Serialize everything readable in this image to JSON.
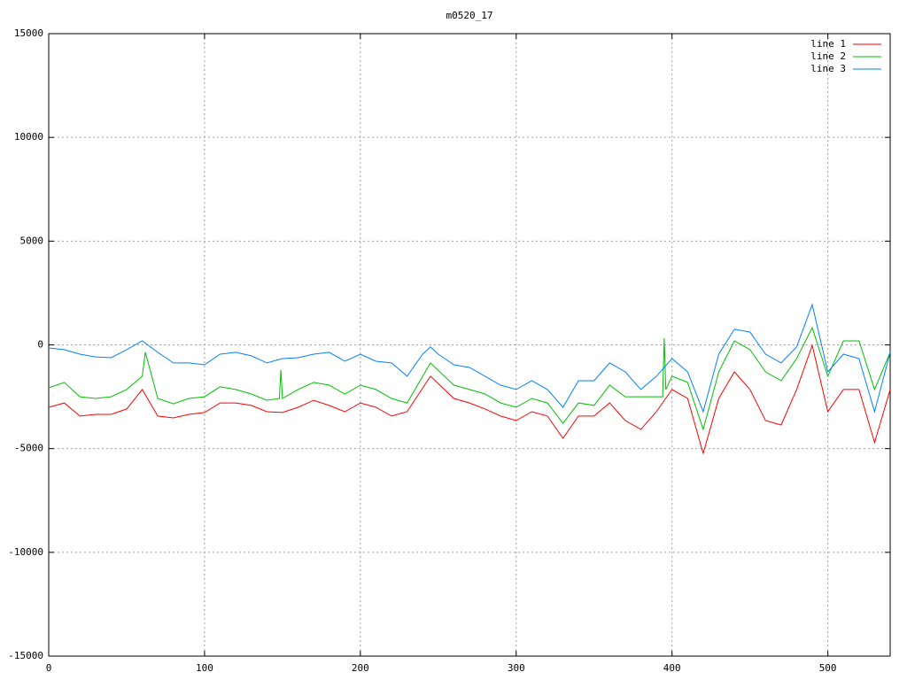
{
  "chart_data": {
    "type": "line",
    "title": "m0520_17",
    "xlim": [
      0,
      540
    ],
    "ylim": [
      -15000,
      15000
    ],
    "xticks": [
      0,
      100,
      200,
      300,
      400,
      500
    ],
    "yticks": [
      -15000,
      -10000,
      -5000,
      0,
      5000,
      10000,
      15000
    ],
    "grid": true,
    "legend": "top-right",
    "series": [
      {
        "name": "line 1",
        "color": "#ff0000",
        "x": [
          0,
          10,
          20,
          30,
          40,
          50,
          60,
          70,
          80,
          90,
          100,
          110,
          120,
          130,
          140,
          150,
          160,
          170,
          180,
          190,
          200,
          210,
          220,
          230,
          245,
          260,
          270,
          280,
          290,
          300,
          310,
          320,
          330,
          340,
          350,
          360,
          370,
          380,
          390,
          400,
          410,
          420,
          430,
          440,
          450,
          460,
          470,
          480,
          490,
          500,
          510,
          520,
          530,
          540
        ],
        "values": [
          -3010,
          -2800,
          -3430,
          -3350,
          -3350,
          -3090,
          -2150,
          -3430,
          -3520,
          -3350,
          -3260,
          -2800,
          -2800,
          -2920,
          -3220,
          -3260,
          -3010,
          -2670,
          -2920,
          -3220,
          -2800,
          -3010,
          -3430,
          -3220,
          -1510,
          -2580,
          -2800,
          -3090,
          -3430,
          -3650,
          -3220,
          -3430,
          -4500,
          -3430,
          -3430,
          -2800,
          -3650,
          -4070,
          -3220,
          -2150,
          -2580,
          -5230,
          -2580,
          -1300,
          -2150,
          -3650,
          -3860,
          -2150,
          -20,
          -3220,
          -2150,
          -2150,
          -4710,
          -2150
        ]
      },
      {
        "name": "line 2",
        "color": "#00c000",
        "x": [
          0,
          10,
          20,
          30,
          40,
          50,
          60,
          62,
          70,
          80,
          90,
          100,
          110,
          120,
          130,
          140,
          148,
          149,
          150,
          160,
          170,
          180,
          190,
          200,
          210,
          220,
          230,
          245,
          260,
          270,
          280,
          290,
          300,
          310,
          320,
          330,
          340,
          350,
          360,
          370,
          380,
          394,
          395,
          396,
          400,
          410,
          420,
          430,
          440,
          450,
          460,
          470,
          480,
          490,
          500,
          510,
          520,
          530,
          540
        ],
        "values": [
          -2070,
          -1810,
          -2500,
          -2580,
          -2500,
          -2150,
          -1510,
          -360,
          -2580,
          -2840,
          -2580,
          -2500,
          -2020,
          -2150,
          -2370,
          -2670,
          -2580,
          -1210,
          -2580,
          -2150,
          -1810,
          -1940,
          -2370,
          -1940,
          -2150,
          -2580,
          -2800,
          -870,
          -1940,
          -2150,
          -2370,
          -2800,
          -3010,
          -2580,
          -2800,
          -3780,
          -2800,
          -2920,
          -1940,
          -2500,
          -2500,
          -2500,
          320,
          -2150,
          -1510,
          -1810,
          -4070,
          -1300,
          190,
          -230,
          -1300,
          -1730,
          -660,
          830,
          -1510,
          190,
          190,
          -2150,
          -360
        ]
      },
      {
        "name": "line 3",
        "color": "#0080ff",
        "x": [
          0,
          10,
          20,
          30,
          40,
          50,
          60,
          70,
          80,
          90,
          100,
          110,
          120,
          130,
          140,
          150,
          160,
          170,
          180,
          190,
          200,
          210,
          220,
          230,
          240,
          245,
          250,
          260,
          270,
          280,
          290,
          300,
          310,
          320,
          330,
          340,
          350,
          360,
          370,
          380,
          390,
          400,
          410,
          420,
          430,
          440,
          450,
          460,
          470,
          480,
          490,
          500,
          510,
          520,
          530,
          540
        ],
        "values": [
          -150,
          -230,
          -450,
          -580,
          -620,
          -230,
          190,
          -360,
          -870,
          -870,
          -960,
          -450,
          -360,
          -530,
          -870,
          -660,
          -620,
          -450,
          -360,
          -790,
          -450,
          -790,
          -870,
          -1510,
          -450,
          -100,
          -450,
          -960,
          -1090,
          -1510,
          -1940,
          -2150,
          -1730,
          -2150,
          -3010,
          -1730,
          -1730,
          -870,
          -1300,
          -2150,
          -1510,
          -660,
          -1300,
          -3220,
          -450,
          750,
          620,
          -450,
          -870,
          -100,
          1940,
          -1300,
          -450,
          -660,
          -3220,
          -360
        ]
      }
    ]
  }
}
